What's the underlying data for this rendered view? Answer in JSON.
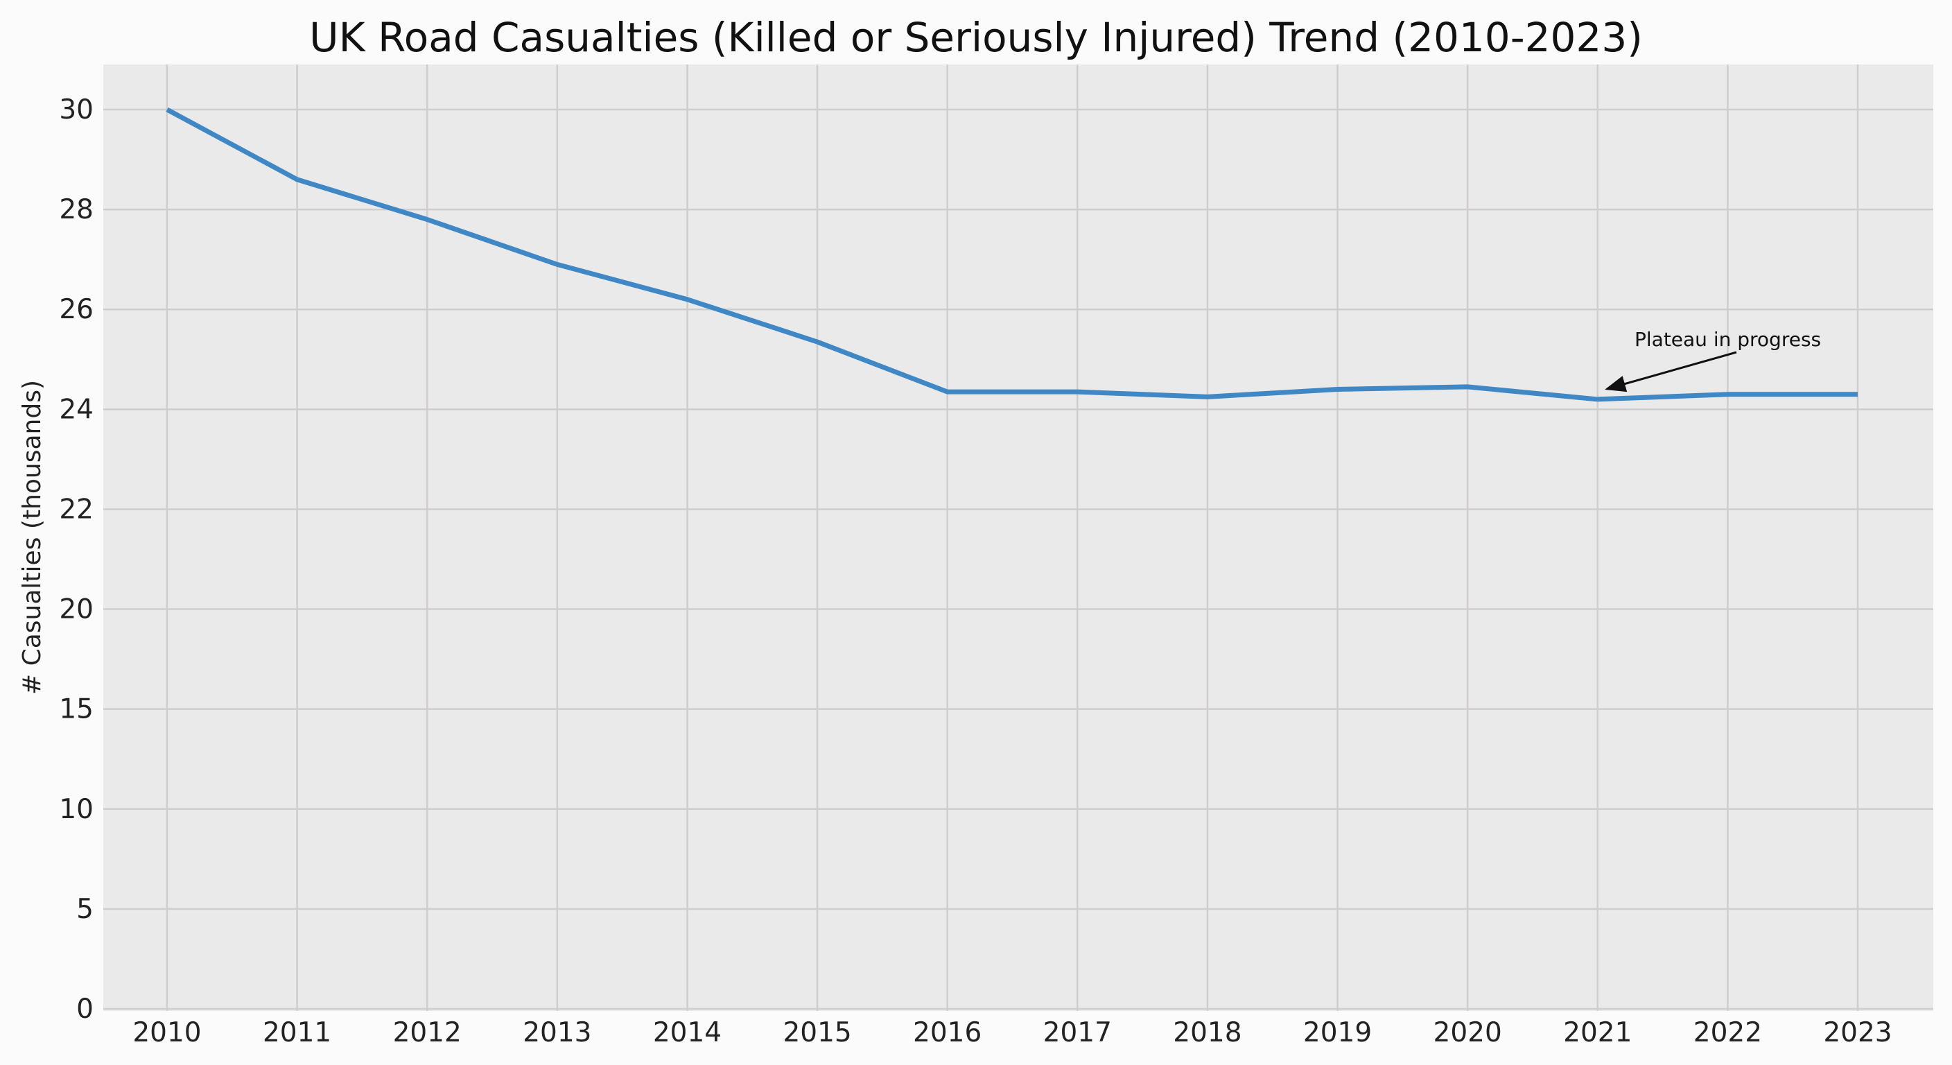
{
  "chart_data": {
    "type": "line",
    "title": "UK Road Casualties (Killed or Seriously Injured) Trend (2010-2023)",
    "xlabel": "",
    "ylabel": "# Casualties (thousands)",
    "x": [
      "2010",
      "2011",
      "2012",
      "2013",
      "2014",
      "2015",
      "2016",
      "2017",
      "2018",
      "2019",
      "2020",
      "2021",
      "2022",
      "2023"
    ],
    "series": [
      {
        "values": [
          30.0,
          28.6,
          27.8,
          26.9,
          26.2,
          25.35,
          24.35,
          24.35,
          24.25,
          24.4,
          24.45,
          24.2,
          24.3,
          24.3
        ],
        "color": "#3f88c5"
      }
    ],
    "y_ticks": [
      "0",
      "5",
      "10",
      "15",
      "20",
      "22",
      "24",
      "26",
      "28",
      "30"
    ],
    "y_tick_values": [
      0,
      5,
      10,
      15,
      20,
      22,
      24,
      26,
      28,
      30
    ],
    "ylim": [
      0,
      30
    ],
    "grid": true,
    "background": "#ebeaea",
    "annotation": {
      "text": "Plateau in progress",
      "target_x": "2021",
      "target_y": 24.3
    }
  }
}
